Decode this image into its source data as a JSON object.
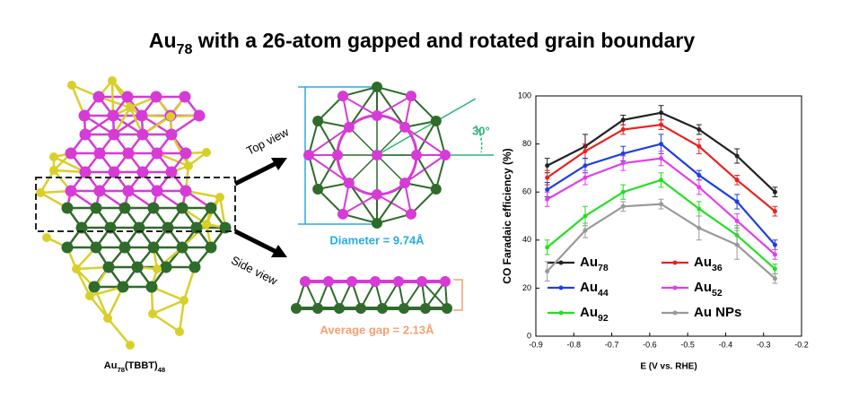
{
  "figure": {
    "title": "Au78 with a 26-atom gapped and rotated grain boundary",
    "top_view": "Top view",
    "side_view": "Side view",
    "angle": "30°",
    "diameter": "Diameter = 9.74Å",
    "gap": "Average gap = 2.13Å",
    "caption": "Au78(TBBT)48"
  },
  "chart_data": {
    "type": "line",
    "x_label": "E (V vs. RHE)",
    "y_label": "CO Faradaic efficiency (%)",
    "x": [
      -0.87,
      -0.77,
      -0.67,
      -0.57,
      -0.47,
      -0.37,
      -0.27
    ],
    "xlim": [
      -0.9,
      -0.2
    ],
    "xticks": [
      -0.9,
      -0.8,
      -0.7,
      -0.6,
      -0.5,
      -0.4,
      -0.3,
      -0.2
    ],
    "ylim": [
      0,
      100
    ],
    "yticks": [
      0,
      20,
      40,
      60,
      80,
      100
    ],
    "series": [
      {
        "name": "Au78",
        "color": "#222222",
        "values": [
          71,
          79,
          90,
          93,
          86,
          75,
          60
        ],
        "errors": [
          3,
          5,
          2,
          3,
          2,
          3,
          2
        ]
      },
      {
        "name": "Au36",
        "color": "#e8231f",
        "values": [
          66,
          77,
          86,
          88,
          79,
          65,
          52
        ],
        "errors": [
          3,
          3,
          2,
          2,
          3,
          2,
          2
        ]
      },
      {
        "name": "Au44",
        "color": "#1f3fe0",
        "values": [
          61,
          71,
          76,
          80,
          67,
          56,
          38
        ],
        "errors": [
          3,
          3,
          3,
          4,
          2,
          3,
          2
        ]
      },
      {
        "name": "Au52",
        "color": "#e040e8",
        "values": [
          57,
          66,
          72,
          74,
          62,
          48,
          34
        ],
        "errors": [
          3,
          3,
          3,
          3,
          3,
          3,
          2
        ]
      },
      {
        "name": "Au92",
        "color": "#22e022",
        "values": [
          37,
          50,
          60,
          65,
          53,
          42,
          28
        ],
        "errors": [
          3,
          4,
          3,
          3,
          3,
          4,
          2
        ]
      },
      {
        "name": "Au NPs",
        "color": "#999999",
        "values": [
          27,
          44,
          54,
          55,
          45,
          38,
          24
        ],
        "errors": [
          4,
          3,
          2,
          2,
          5,
          6,
          2
        ]
      }
    ]
  }
}
